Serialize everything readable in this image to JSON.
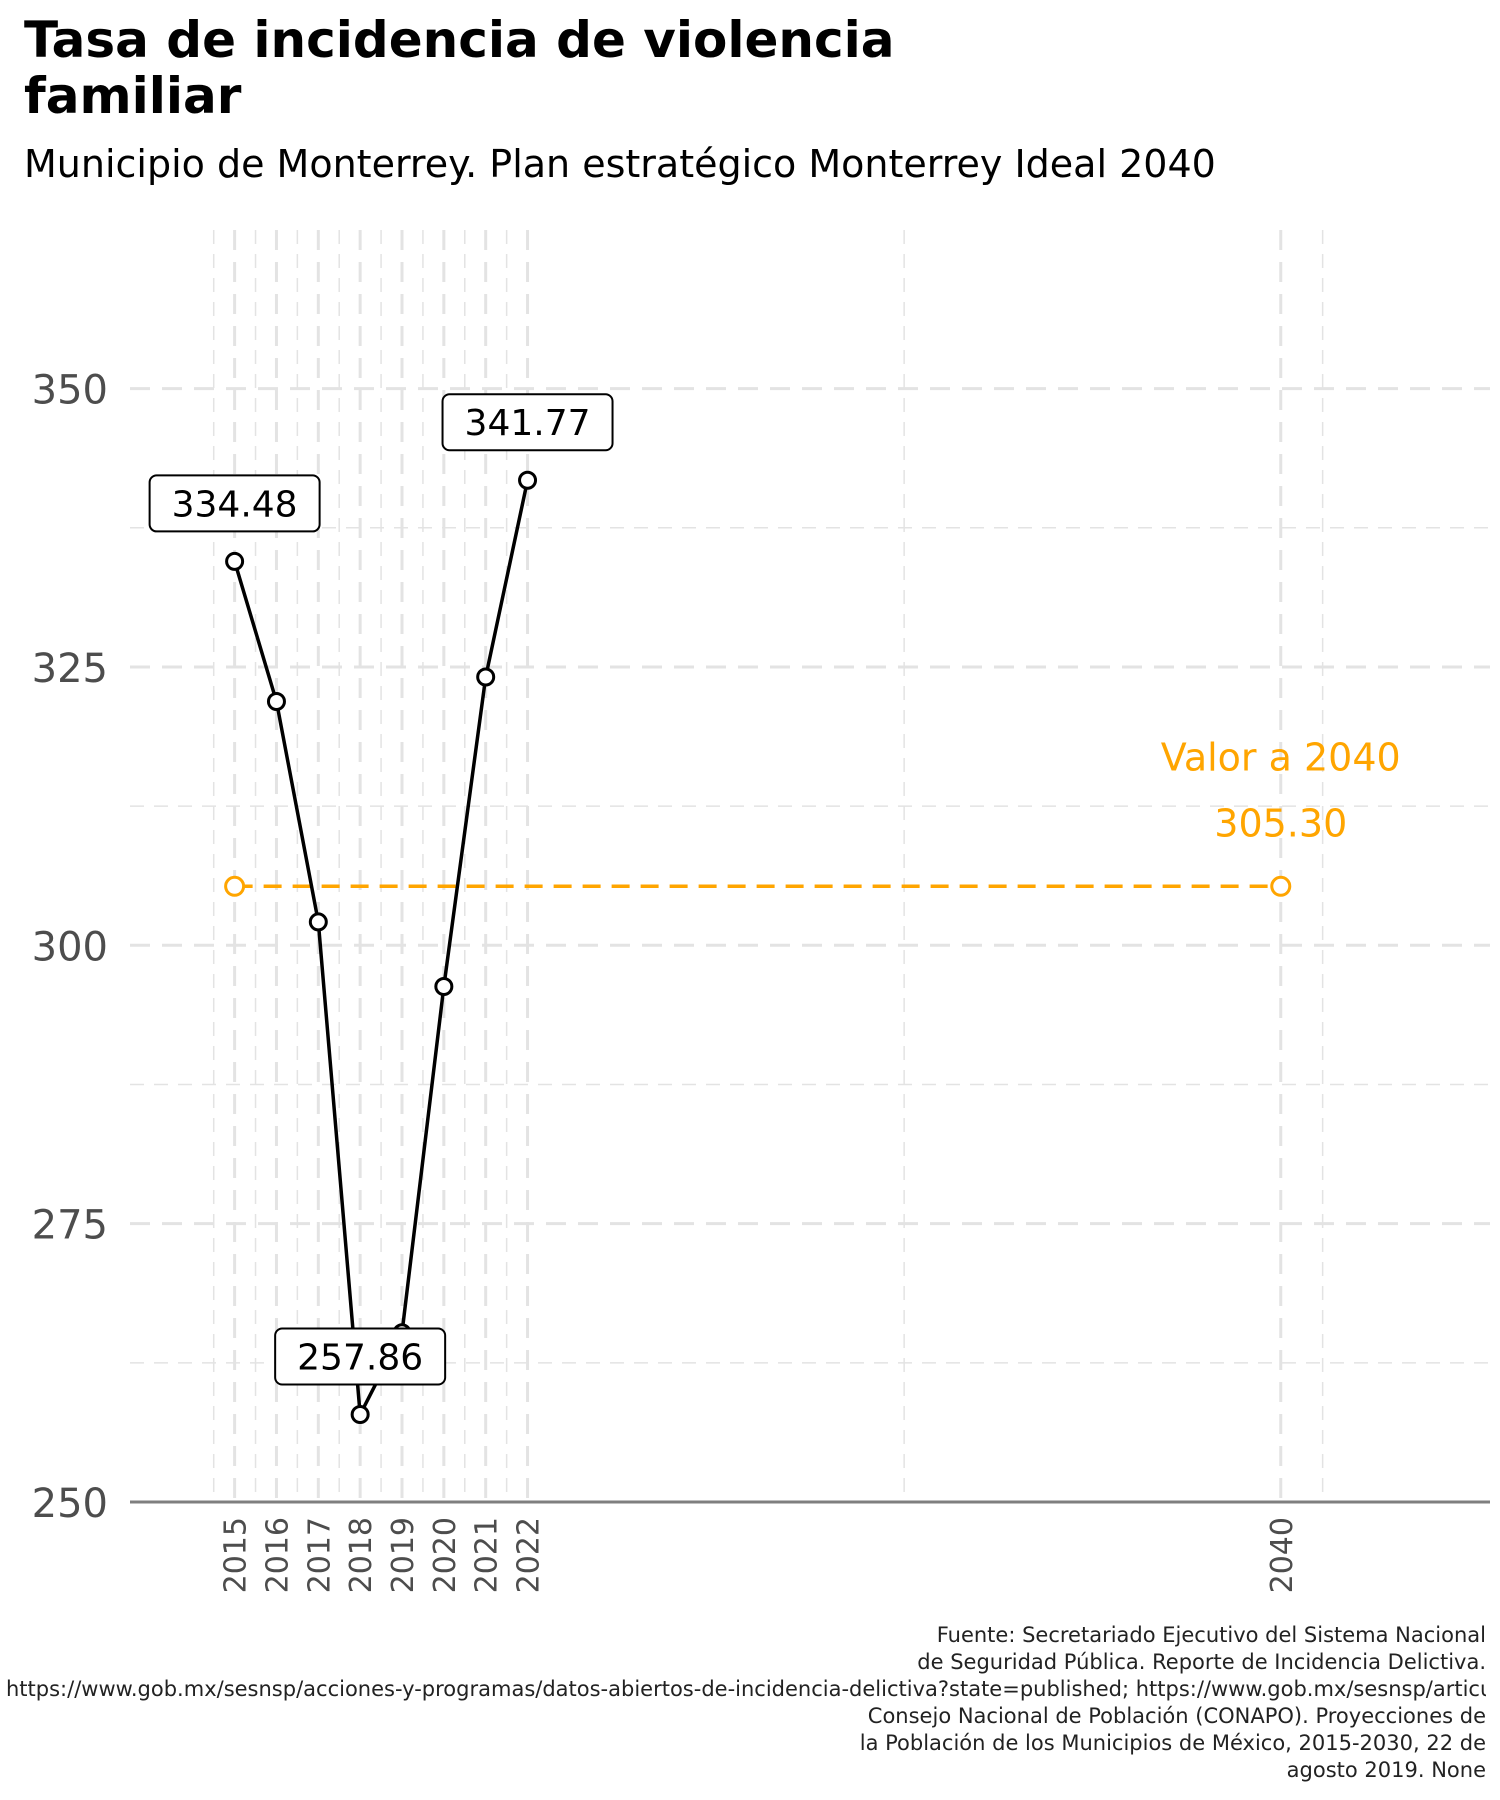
{
  "title": "Tasa de incidencia de violencia familiar",
  "subtitle": "Municipio de Monterrey. Plan estratégico Monterrey Ideal 2040",
  "caption_lines": [
    "Fuente: Secretariado Ejecutivo del Sistema Nacional",
    "de Seguridad Pública. Reporte de Incidencia Delictiva.",
    "https://www.gob.mx/sesnsp/acciones-y-programas/datos-abiertos-de-incidencia-delictiva?state=published; https://www.gob.mx/sesnsp/articulos/incidencia-delictiva-del-fuero-comun-nueva-metodologia?state=published;%20https://drive.google.com/file/d/1xNe-X81kiSmnlAzjO3Bw4v7CBnAs2_hB/view",
    "Consejo Nacional de Población (CONAPO). Proyecciones de",
    "la Población de los Municipios de México, 2015-2030, 22 de",
    "agosto 2019. None"
  ],
  "colors": {
    "series": "#000000",
    "target": "#FFA500",
    "grid": "#e3e3e3",
    "axis": "#7f7f7f"
  },
  "chart_data": {
    "type": "line",
    "title": "Tasa de incidencia de violencia familiar",
    "subtitle": "Municipio de Monterrey. Plan estratégico Monterrey Ideal 2040",
    "xlabel": "",
    "ylabel": "",
    "x_ticks": [
      2015,
      2016,
      2017,
      2018,
      2019,
      2020,
      2021,
      2022,
      2040
    ],
    "y_ticks": [
      250,
      275,
      300,
      325,
      350
    ],
    "xlim": [
      2012.5,
      2045
    ],
    "ylim": [
      250,
      362
    ],
    "grid": true,
    "series": [
      {
        "x": [
          2015,
          2016,
          2017,
          2018,
          2019,
          2020,
          2021,
          2022
        ],
        "values": [
          334.48,
          321.9,
          302.1,
          257.86,
          265.2,
          296.3,
          324.1,
          341.77
        ]
      }
    ],
    "labels": [
      {
        "x": 2015,
        "y": 334.48,
        "text": "334.48"
      },
      {
        "x": 2018,
        "y": 257.86,
        "text": "257.86"
      },
      {
        "x": 2022,
        "y": 341.77,
        "text": "341.77"
      }
    ],
    "target": {
      "x": [
        2015,
        2040
      ],
      "value": 305.3,
      "label_line1": "Valor a 2040",
      "label_line2": "305.30"
    }
  }
}
